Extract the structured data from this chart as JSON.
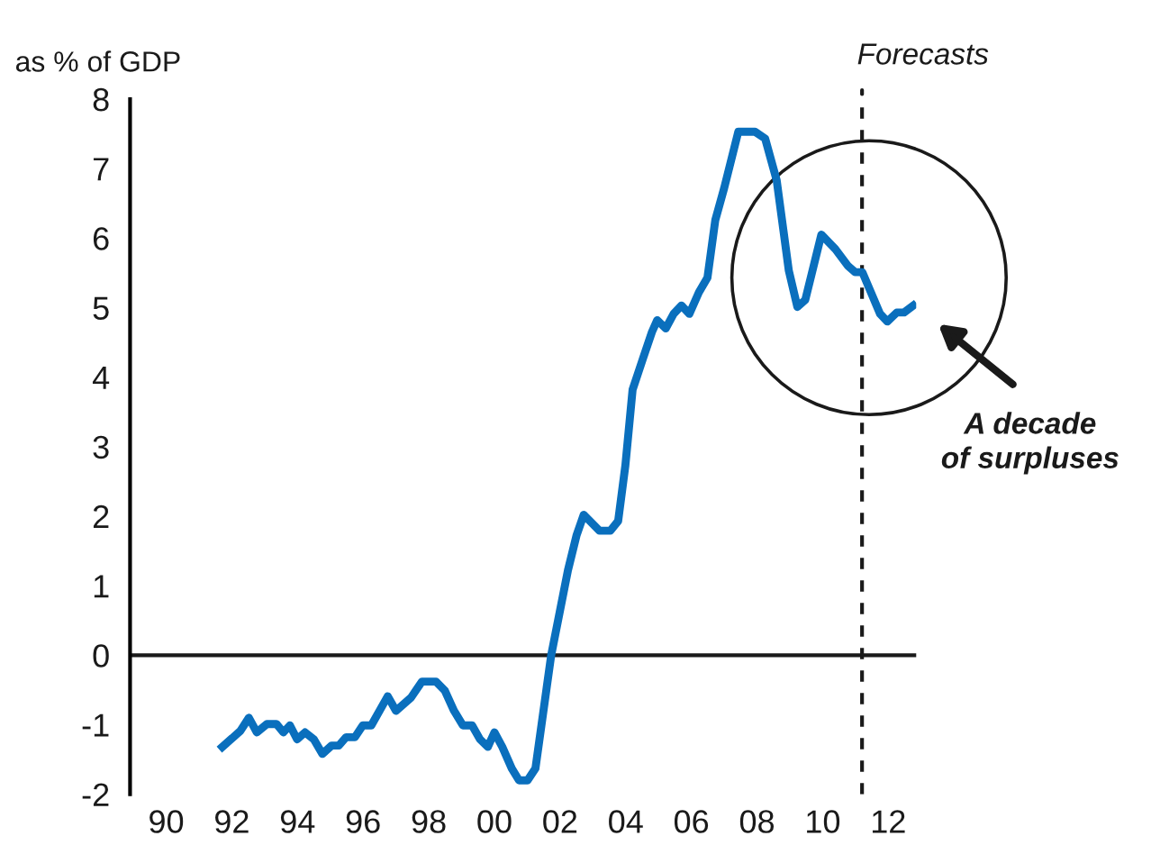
{
  "chart_data": {
    "type": "line",
    "ylabel": "as % of GDP",
    "x": [
      1991.71,
      1992.26,
      1992.52,
      1992.76,
      1993.07,
      1993.36,
      1993.57,
      1993.77,
      1993.99,
      1994.23,
      1994.5,
      1994.76,
      1995.04,
      1995.26,
      1995.48,
      1995.75,
      1995.99,
      1996.25,
      1996.75,
      1997.0,
      1997.46,
      1997.79,
      1998.22,
      1998.49,
      1998.77,
      1999.04,
      1999.32,
      1999.56,
      1999.8,
      2000.0,
      2000.24,
      2000.53,
      2000.75,
      2001.01,
      2001.25,
      2001.73,
      2002.24,
      2002.5,
      2002.72,
      2003.2,
      2003.53,
      2003.77,
      2003.99,
      2004.21,
      2004.52,
      2004.8,
      2004.96,
      2005.22,
      2005.46,
      2005.7,
      2005.94,
      2006.23,
      2006.49,
      2006.73,
      2007.0,
      2007.43,
      2007.94,
      2008.25,
      2008.6,
      2008.97,
      2009.23,
      2009.47,
      2009.96,
      2010.39,
      2010.77,
      2010.99,
      2011.21,
      2011.75,
      2011.97,
      2012.26,
      2012.48,
      2012.76
    ],
    "series": [
      {
        "color": "#0a6fbd",
        "values": [
          -1.32,
          -1.09,
          -0.9,
          -1.11,
          -0.99,
          -0.99,
          -1.11,
          -1.01,
          -1.21,
          -1.11,
          -1.21,
          -1.42,
          -1.3,
          -1.3,
          -1.18,
          -1.18,
          -1.01,
          -1.01,
          -0.59,
          -0.8,
          -0.61,
          -0.38,
          -0.38,
          -0.51,
          -0.8,
          -1.01,
          -1.01,
          -1.21,
          -1.32,
          -1.11,
          -1.32,
          -1.63,
          -1.8,
          -1.8,
          -1.63,
          0,
          1.22,
          1.72,
          2.02,
          1.79,
          1.79,
          1.93,
          2.73,
          3.82,
          4.26,
          4.65,
          4.82,
          4.7,
          4.91,
          5.03,
          4.91,
          5.22,
          5.43,
          6.26,
          6.72,
          7.53,
          7.53,
          7.43,
          6.83,
          5.53,
          5.01,
          5.11,
          6.05,
          5.84,
          5.6,
          5.51,
          5.51,
          4.91,
          4.8,
          4.93,
          4.93,
          5.03
        ]
      }
    ],
    "xlim": [
      1988.9,
      2012.85
    ],
    "xticks": [
      {
        "value": 1990,
        "label": "90"
      },
      {
        "value": 1992,
        "label": "92"
      },
      {
        "value": 1994,
        "label": "94"
      },
      {
        "value": 1996,
        "label": "96"
      },
      {
        "value": 1998,
        "label": "98"
      },
      {
        "value": 2000,
        "label": "00"
      },
      {
        "value": 2002,
        "label": "02"
      },
      {
        "value": 2004,
        "label": "04"
      },
      {
        "value": 2006,
        "label": "06"
      },
      {
        "value": 2008,
        "label": "08"
      },
      {
        "value": 2010,
        "label": "10"
      },
      {
        "value": 2012,
        "label": "12"
      }
    ],
    "ylim": [
      -2,
      8
    ],
    "yticks": [
      -2,
      -1,
      0,
      1,
      2,
      3,
      4,
      5,
      6,
      7,
      8
    ],
    "ref_lines": [
      {
        "axis": "y",
        "value": 0,
        "color": "#1a1a1a",
        "line_style": "solid"
      },
      {
        "axis": "x",
        "value": 2011.2,
        "label": "Forecasts",
        "color": "#1a1a1a",
        "line_style": "dashed"
      }
    ],
    "annotations": [
      "A decade\nof surpluses"
    ],
    "grid": false,
    "line_style": "solid",
    "marker": "none"
  }
}
